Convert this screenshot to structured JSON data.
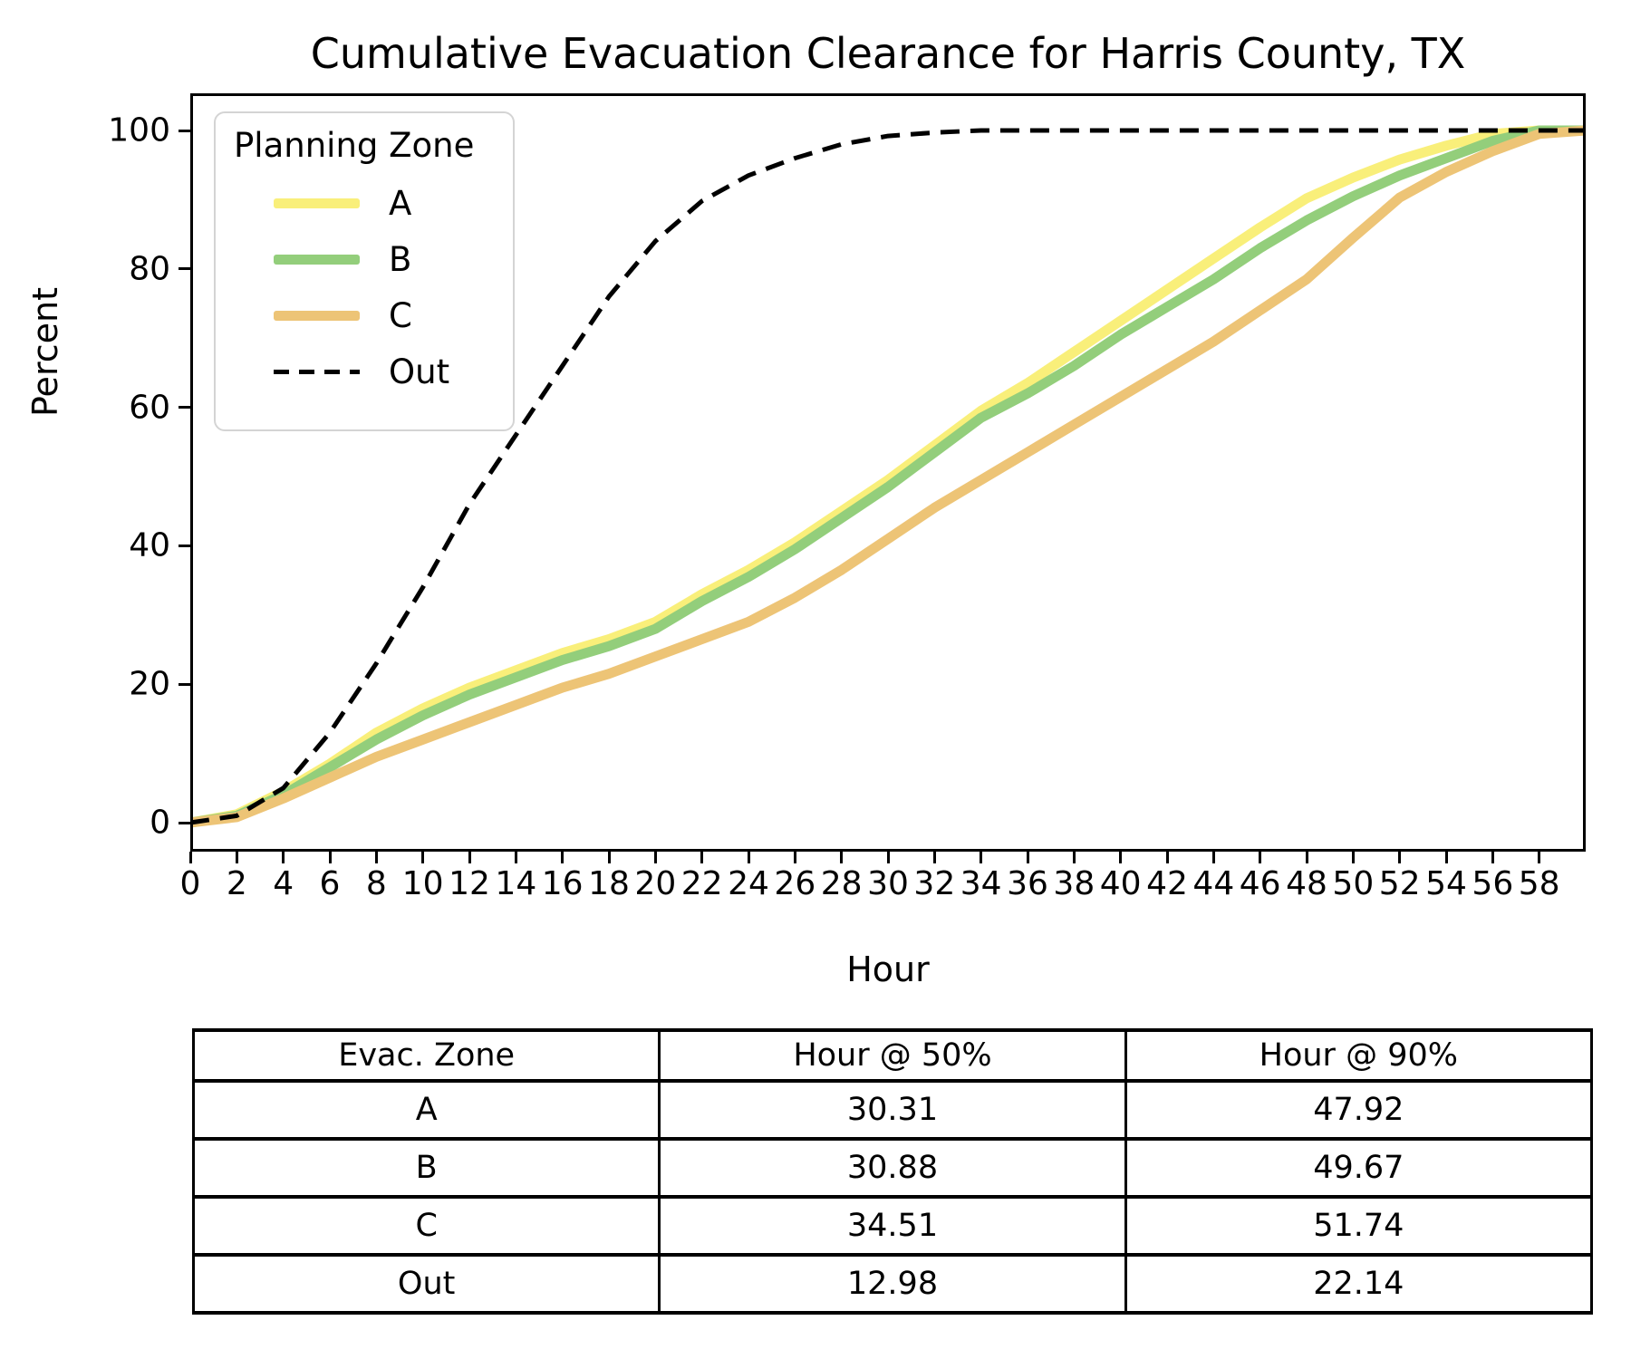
{
  "title": "Cumulative Evacuation Clearance for Harris County, TX",
  "axes": {
    "xlabel": "Hour",
    "ylabel": "Percent",
    "xticks": [
      0,
      2,
      4,
      6,
      8,
      10,
      12,
      14,
      16,
      18,
      20,
      22,
      24,
      26,
      28,
      30,
      32,
      34,
      36,
      38,
      40,
      42,
      44,
      46,
      48,
      50,
      52,
      54,
      56,
      58
    ],
    "yticks": [
      0,
      20,
      40,
      60,
      80,
      100
    ],
    "xlim": [
      0,
      60
    ],
    "ylim": [
      -5,
      105.3
    ],
    "grid": false
  },
  "legend": {
    "title": "Planning Zone",
    "position": "upper left",
    "entries": [
      {
        "label": "A",
        "color": "#f9ef7a",
        "style": "solid"
      },
      {
        "label": "B",
        "color": "#93ce7b",
        "style": "solid"
      },
      {
        "label": "C",
        "color": "#edc476",
        "style": "solid"
      },
      {
        "label": "Out",
        "color": "#000000",
        "style": "dashed"
      }
    ]
  },
  "chart_data": {
    "type": "line",
    "title": "Cumulative Evacuation Clearance for Harris County, TX",
    "xlabel": "Hour",
    "ylabel": "Percent",
    "x": [
      0,
      2,
      4,
      6,
      8,
      10,
      12,
      14,
      16,
      18,
      20,
      22,
      24,
      26,
      28,
      30,
      32,
      34,
      36,
      38,
      40,
      42,
      44,
      46,
      48,
      50,
      52,
      54,
      56,
      58,
      60
    ],
    "series": [
      {
        "name": "A",
        "color": "#f9ef7a",
        "width": 11,
        "dashed": false,
        "values": [
          0,
          1.2,
          4.5,
          8.5,
          13,
          16.5,
          19.5,
          22,
          24.5,
          26.5,
          29,
          33,
          36.5,
          40.5,
          45,
          49.5,
          54.5,
          59.5,
          63.5,
          68,
          72.5,
          77,
          81.5,
          86,
          90.2,
          93.2,
          95.8,
          97.8,
          99.5,
          100,
          100
        ]
      },
      {
        "name": "B",
        "color": "#93ce7b",
        "width": 11,
        "dashed": false,
        "values": [
          0,
          1.0,
          4.0,
          8.0,
          12,
          15.5,
          18.5,
          21,
          23.5,
          25.5,
          28,
          32,
          35.5,
          39.5,
          44,
          48.5,
          53.5,
          58.5,
          62,
          66,
          70.5,
          74.5,
          78.5,
          83,
          87,
          90.5,
          93.5,
          96,
          98.5,
          100,
          100
        ]
      },
      {
        "name": "C",
        "color": "#edc476",
        "width": 11,
        "dashed": false,
        "values": [
          0,
          0.8,
          3.5,
          6.5,
          9.5,
          12,
          14.5,
          17,
          19.5,
          21.5,
          24,
          26.5,
          29,
          32.5,
          36.5,
          41,
          45.5,
          49.5,
          53.5,
          57.5,
          61.5,
          65.5,
          69.5,
          74,
          78.5,
          84.5,
          90.3,
          94,
          97,
          99.5,
          100
        ]
      },
      {
        "name": "Out",
        "color": "#000000",
        "width": 5,
        "dashed": true,
        "values": [
          0,
          1.0,
          5.0,
          13,
          23,
          34,
          46,
          56,
          66,
          76,
          84,
          89.8,
          93.5,
          96,
          98,
          99.2,
          99.7,
          100,
          100,
          100,
          100,
          100,
          100,
          100,
          100,
          100,
          100,
          100,
          100,
          100,
          100
        ]
      }
    ]
  },
  "table": {
    "headers": [
      "Evac. Zone",
      "Hour @ 50%",
      "Hour @ 90%"
    ],
    "rows": [
      [
        "A",
        "30.31",
        "47.92"
      ],
      [
        "B",
        "30.88",
        "49.67"
      ],
      [
        "C",
        "34.51",
        "51.74"
      ],
      [
        "Out",
        "12.98",
        "22.14"
      ]
    ]
  }
}
